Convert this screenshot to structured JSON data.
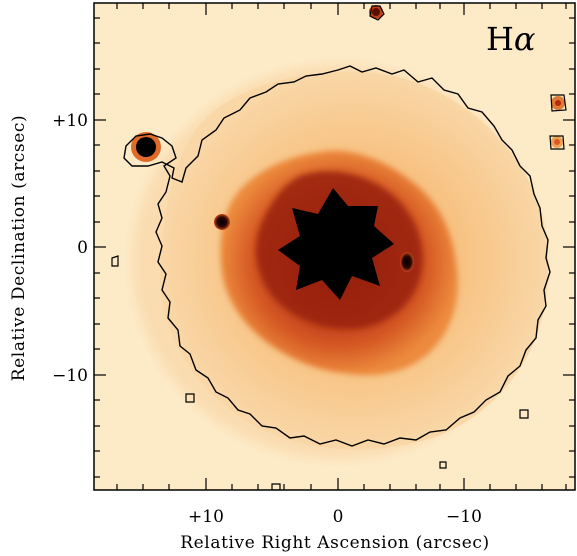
{
  "band_label": "H",
  "band_label_greek": "α",
  "x_axis": {
    "title": "Relative Right Ascension (arcsec)",
    "ticks": [
      "+10",
      "0",
      "−10"
    ]
  },
  "y_axis": {
    "title": "Relative Declination (arcsec)",
    "ticks": [
      "+10",
      "0",
      "−10"
    ]
  },
  "colors": {
    "background": "#fdebc8",
    "halo_outer": "#f9cf95",
    "halo_inner": "#f5b16e",
    "shell_outer": "#ea7a32",
    "shell_mid": "#c6411d",
    "shell_dark": "#82190b",
    "core": "#000000",
    "contour": "#000000"
  }
}
